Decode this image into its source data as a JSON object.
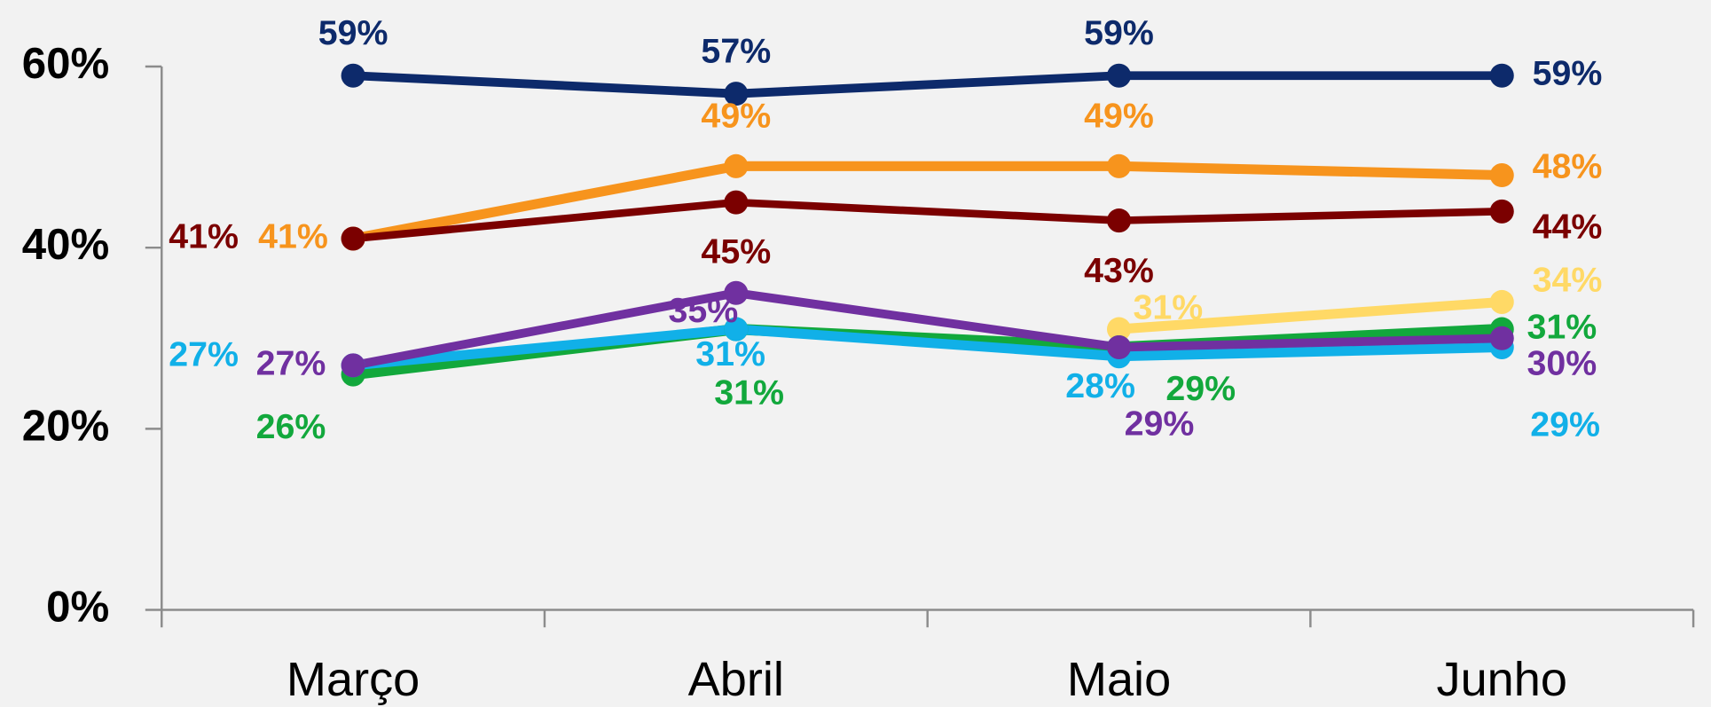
{
  "chart_data": {
    "type": "line",
    "categories": [
      "Março",
      "Abril",
      "Maio",
      "Junho"
    ],
    "series": [
      {
        "color": "#0d2a6b",
        "values": [
          59,
          57,
          59,
          59
        ],
        "value_labels": [
          "59%",
          "57%",
          "59%",
          "59%"
        ]
      },
      {
        "color": "#f7941d",
        "values": [
          41,
          49,
          49,
          48
        ],
        "value_labels": [
          "41%",
          "49%",
          "49%",
          "48%"
        ]
      },
      {
        "color": "#7b0000",
        "values": [
          41,
          45,
          43,
          44
        ],
        "value_labels": [
          "41%",
          "45%",
          "43%",
          "44%"
        ]
      },
      {
        "color": "#ffd966",
        "values": [
          null,
          null,
          31,
          34
        ],
        "value_labels": [
          null,
          null,
          "31%",
          "34%"
        ]
      },
      {
        "color": "#12a83c",
        "values": [
          26,
          31,
          29,
          31
        ],
        "value_labels": [
          "26%",
          "31%",
          "29%",
          "31%"
        ]
      },
      {
        "color": "#11b0e8",
        "values": [
          27,
          31,
          28,
          29
        ],
        "value_labels": [
          "27%",
          "31%",
          "28%",
          "29%"
        ]
      },
      {
        "color": "#7030a0",
        "values": [
          27,
          35,
          29,
          30
        ],
        "value_labels": [
          "27%",
          "35%",
          "29%",
          "30%"
        ]
      }
    ],
    "ylim": [
      0,
      60
    ],
    "yticks": [
      {
        "value": 0,
        "label": "0%"
      },
      {
        "value": 20,
        "label": "20%"
      },
      {
        "value": 40,
        "label": "40%"
      },
      {
        "value": 60,
        "label": "60%"
      }
    ],
    "grid": false
  }
}
